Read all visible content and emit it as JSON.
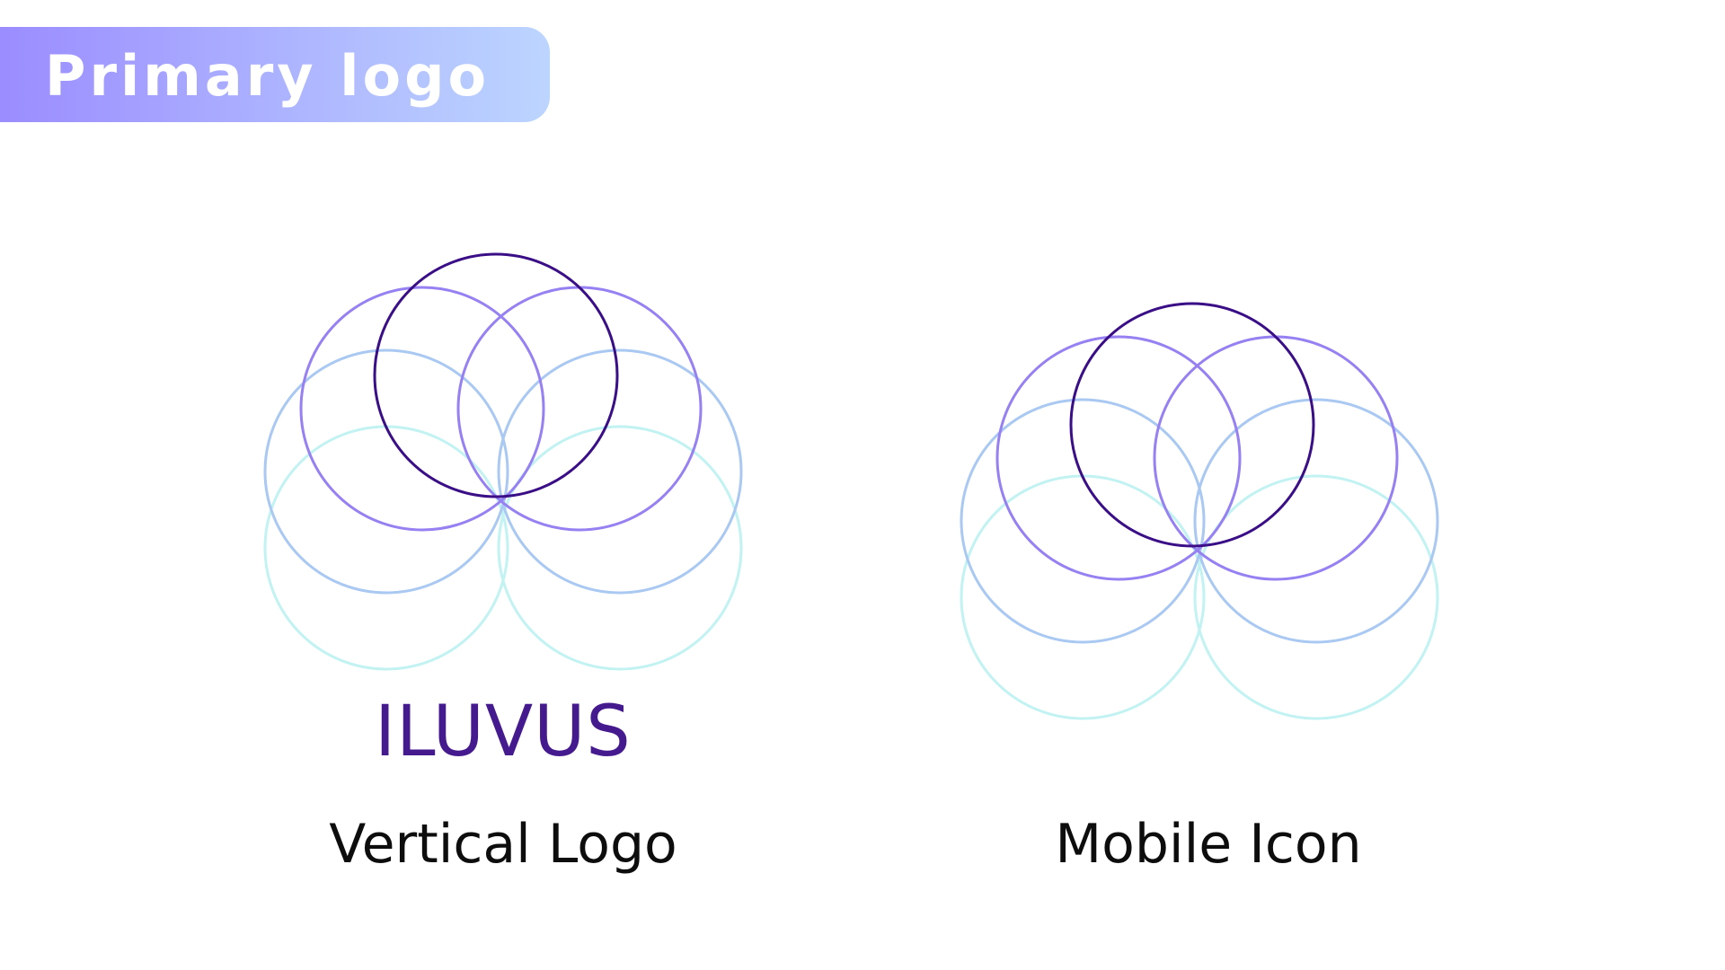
{
  "header": {
    "title": "Primary logo"
  },
  "vertical_logo": {
    "wordmark": "ILUVUS",
    "caption": "Vertical Logo"
  },
  "mobile_icon": {
    "caption": "Mobile Icon"
  },
  "colors": {
    "header_gradient": [
      "#9b8cff",
      "#bcd5ff"
    ],
    "wordmark": "#461a8f",
    "circle_top": "#3a0e86",
    "circle_upper": "#9680f2",
    "circle_middle": "#a9c8f2",
    "circle_lower": "#c2f2f2",
    "caption": "#0d0d0d"
  },
  "icons": [
    "overlapping-circles-logo-icon"
  ]
}
